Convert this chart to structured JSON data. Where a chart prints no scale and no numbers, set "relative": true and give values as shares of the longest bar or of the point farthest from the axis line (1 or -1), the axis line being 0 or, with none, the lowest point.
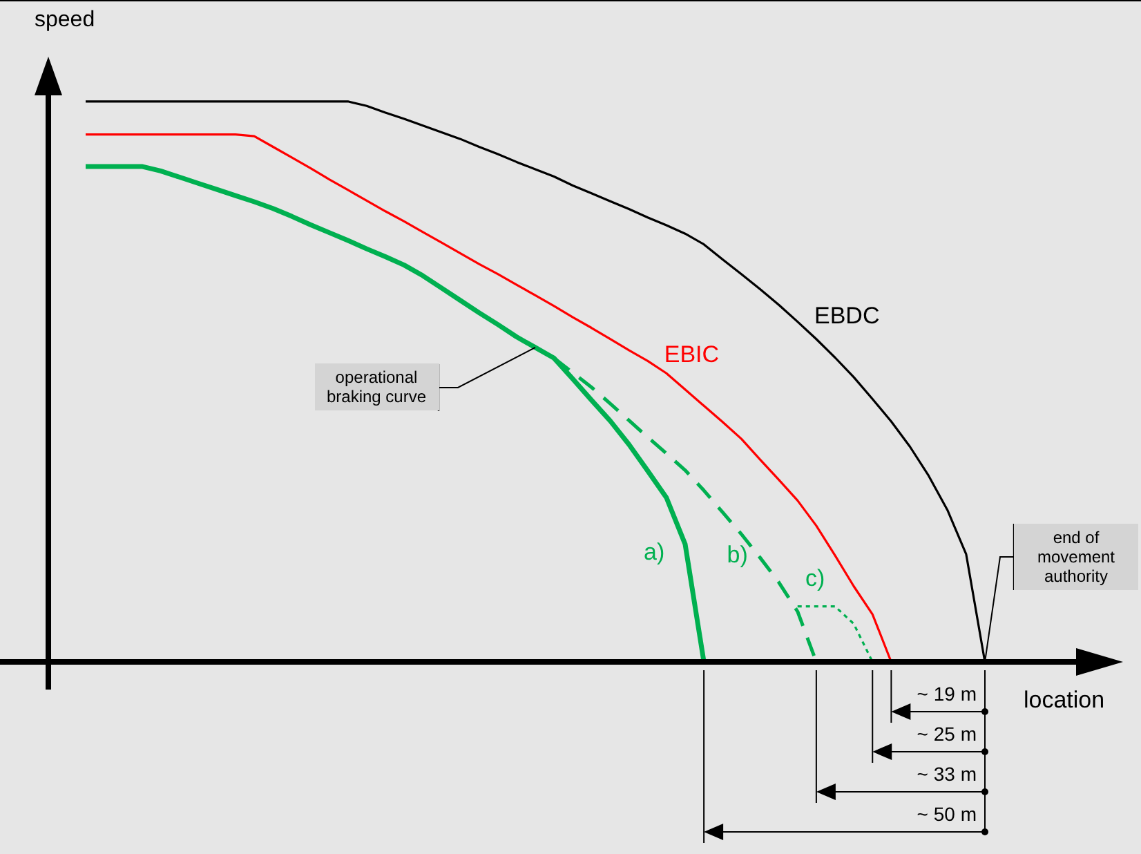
{
  "chart_data": {
    "type": "line",
    "relative": true,
    "xlabel": "location",
    "ylabel": "speed",
    "tick_labels": false,
    "legend": false,
    "marker": "none",
    "categories": [
      null,
      null,
      null,
      null,
      null,
      null,
      null,
      null,
      null,
      null,
      null,
      null,
      null,
      null,
      null,
      null,
      null,
      null,
      null,
      null,
      null,
      null,
      null,
      null,
      null,
      null,
      null,
      null,
      null,
      null,
      null,
      null,
      null,
      null,
      null,
      null,
      null,
      null,
      null,
      null,
      null,
      null,
      null,
      null,
      null,
      null,
      null,
      null,
      null
    ],
    "series": [
      {
        "name": "EBDC",
        "color": "#000000",
        "line_style": "solid",
        "values": [
          1,
          1,
          1,
          1,
          1,
          1,
          1,
          1,
          1,
          1,
          1,
          1,
          1,
          1,
          1,
          0.992,
          0.98,
          0.969,
          0.957,
          0.945,
          0.933,
          0.919,
          0.906,
          0.892,
          0.879,
          0.866,
          0.85,
          0.836,
          0.822,
          0.808,
          0.793,
          0.779,
          0.764,
          0.745,
          0.718,
          0.692,
          0.665,
          0.637,
          0.607,
          0.576,
          0.543,
          0.508,
          0.469,
          0.429,
          0.384,
          0.332,
          0.271,
          0.192,
          0
        ]
      },
      {
        "name": "EBIC",
        "color": "#ff0000",
        "line_style": "solid",
        "values": [
          0.941,
          0.941,
          0.941,
          0.941,
          0.941,
          0.941,
          0.941,
          0.941,
          0.941,
          0.938,
          0.919,
          0.9,
          0.881,
          0.861,
          0.842,
          0.823,
          0.804,
          0.786,
          0.767,
          0.748,
          0.729,
          0.71,
          0.692,
          0.673,
          0.654,
          0.635,
          0.615,
          0.596,
          0.576,
          0.556,
          0.537,
          0.515,
          0.486,
          0.457,
          0.428,
          0.398,
          0.361,
          0.325,
          0.288,
          0.243,
          0.19,
          0.135,
          0.085,
          0,
          null,
          null,
          null,
          null,
          null
        ]
      },
      {
        "name": "a)",
        "color": "#00b050",
        "line_style": "solid",
        "values": [
          0.884,
          0.884,
          0.884,
          0.884,
          0.876,
          0.865,
          0.854,
          0.843,
          0.832,
          0.821,
          0.809,
          0.795,
          0.78,
          0.766,
          0.752,
          0.737,
          0.723,
          0.708,
          0.689,
          0.667,
          0.645,
          0.623,
          0.602,
          0.58,
          0.561,
          0.542,
          0.505,
          0.467,
          0.43,
          0.388,
          0.341,
          0.293,
          0.21,
          0,
          null,
          null,
          null,
          null,
          null,
          null,
          null,
          null,
          null,
          null,
          null,
          null,
          null,
          null,
          null
        ]
      },
      {
        "name": "b)",
        "color": "#00b050",
        "line_style": "dashed",
        "values": [
          null,
          null,
          null,
          null,
          null,
          null,
          null,
          null,
          null,
          null,
          null,
          null,
          null,
          null,
          null,
          null,
          null,
          null,
          null,
          null,
          null,
          null,
          null,
          null,
          null,
          0.542,
          0.516,
          0.49,
          0.461,
          0.431,
          0.401,
          0.372,
          0.342,
          0.306,
          0.267,
          0.228,
          0.186,
          0.142,
          0.09,
          0,
          null,
          null,
          null,
          null,
          null,
          null,
          null,
          null,
          null
        ]
      },
      {
        "name": "c)",
        "color": "#00b050",
        "line_style": "dotted",
        "values": [
          null,
          null,
          null,
          null,
          null,
          null,
          null,
          null,
          null,
          null,
          null,
          null,
          null,
          null,
          null,
          null,
          null,
          null,
          null,
          null,
          null,
          null,
          null,
          null,
          null,
          null,
          null,
          null,
          null,
          null,
          null,
          null,
          null,
          null,
          null,
          null,
          null,
          null,
          0.099,
          0.099,
          0.099,
          0.068,
          0,
          null,
          null,
          null,
          null,
          null,
          null
        ]
      }
    ],
    "annotations": [
      "operational braking curve",
      "end of movement authority",
      "~ 19 m",
      "~ 25 m",
      "~ 33 m",
      "~ 50 m"
    ]
  }
}
